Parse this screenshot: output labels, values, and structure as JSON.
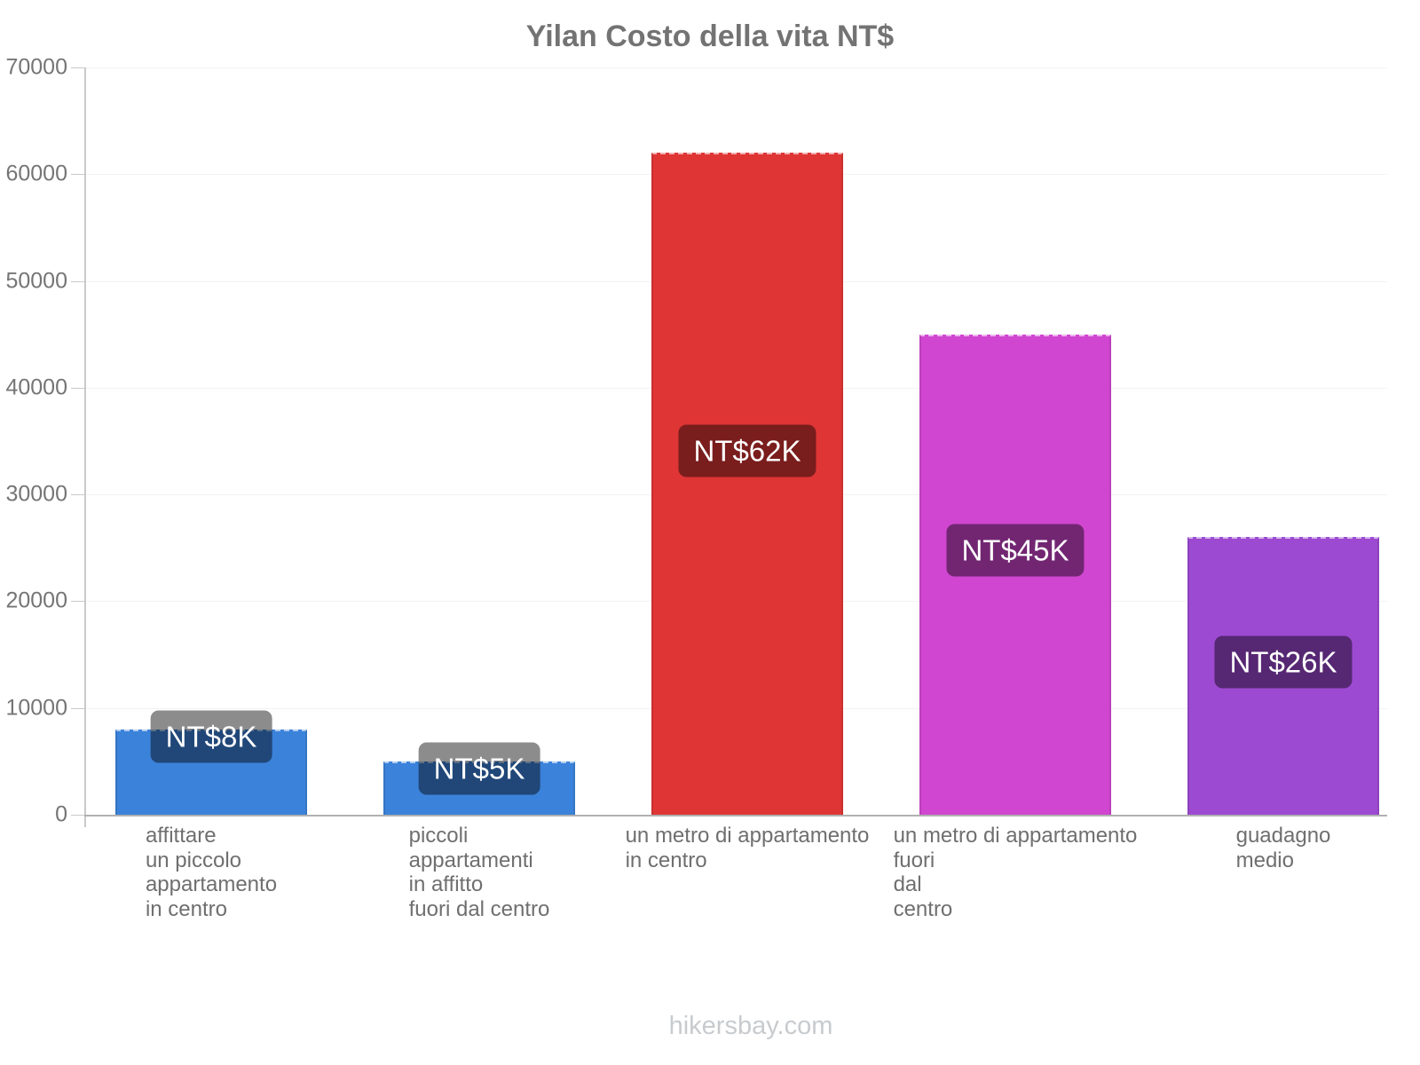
{
  "title": "Yilan Costo della vita NT$",
  "footer": "hikersbay.com",
  "colors": {
    "background": "#ffffff",
    "title_text": "#737373",
    "axis_line": "#c9c9c9",
    "baseline": "#b0b0b0",
    "gridline": "#f2f2f2",
    "tick_label": "#757575",
    "category_label": "#6f6f6f",
    "badge_background": "rgba(0,0,0,0.45)",
    "badge_text": "#ffffff",
    "footer_text": "#c8cbce"
  },
  "chart_data": {
    "type": "bar",
    "title": "Yilan Costo della vita NT$",
    "currency": "NT$",
    "categories": [
      [
        "affittare",
        "un piccolo",
        "appartamento",
        "in centro"
      ],
      [
        "piccoli",
        "appartamenti",
        "in affitto",
        "fuori dal centro"
      ],
      [
        "un metro di appartamento",
        "in centro"
      ],
      [
        "un metro di appartamento",
        "fuori",
        "dal",
        "centro"
      ],
      [
        "guadagno",
        "medio"
      ]
    ],
    "values": [
      8000,
      5000,
      62000,
      45000,
      26000
    ],
    "bar_labels": [
      "NT$8K",
      "NT$5K",
      "NT$62K",
      "NT$45K",
      "NT$26K"
    ],
    "bar_colors": [
      "#3b82da",
      "#3b82da",
      "#df3535",
      "#d046d0",
      "#9d4ad2"
    ],
    "xlabel": "",
    "ylabel": "",
    "ylim": [
      0,
      70000
    ],
    "yticks": [
      0,
      10000,
      20000,
      30000,
      40000,
      50000,
      60000,
      70000
    ],
    "grid": true,
    "legend": "none"
  }
}
